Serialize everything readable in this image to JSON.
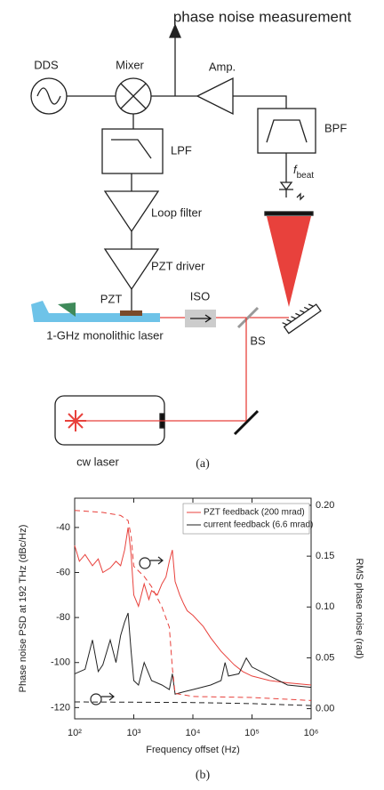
{
  "panel_a": {
    "output": "phase noise measurement",
    "dds": "DDS",
    "mixer": "Mixer",
    "amp": "Amp.",
    "bpf": "BPF",
    "lpf": "LPF",
    "f_symbol": "f",
    "f_subscript": "beat",
    "loop_filter": "Loop filter",
    "pzt_driver": "PZT driver",
    "pzt": "PZT",
    "iso": "ISO",
    "laser": "1-GHz monolithic laser",
    "bs": "BS",
    "cw_laser": "cw laser",
    "caption": "(a)"
  },
  "caption_b": "(b)",
  "chart_data": {
    "type": "line",
    "xlabel": "Frequency offset (Hz)",
    "ylabel": "Phase noise PSD at 192 THz (dBc/Hz)",
    "y2label": "RMS phase noise (rad)",
    "xscale": "log",
    "xlim": [
      100,
      1000000
    ],
    "xticks": [
      {
        "value": 100,
        "label": "10²"
      },
      {
        "value": 1000,
        "label": "10³"
      },
      {
        "value": 10000,
        "label": "10⁴"
      },
      {
        "value": 100000,
        "label": "10⁵"
      },
      {
        "value": 1000000,
        "label": "10⁶"
      }
    ],
    "ylim": [
      -125,
      -27
    ],
    "yticks": [
      -40,
      -60,
      -80,
      -100,
      -120
    ],
    "y2lim": [
      -0.01,
      0.207
    ],
    "y2ticks": [
      {
        "value": 0,
        "label": "0.00"
      },
      0.05,
      {
        "value": 0.1,
        "label": "0.10"
      },
      0.15,
      {
        "value": 0.2,
        "label": "0.20"
      }
    ],
    "legend": "upper right",
    "series": [
      {
        "name": "PZT feedback (200 mrad)",
        "color": "#e8413c",
        "x": [
          100,
          120,
          150,
          200,
          250,
          300,
          400,
          500,
          600,
          700,
          800,
          900,
          1000,
          1200,
          1500,
          1800,
          2000,
          2500,
          3000,
          3500,
          4000,
          4500,
          5000,
          6000,
          7000,
          8000,
          10000,
          15000,
          20000,
          30000,
          50000,
          70000,
          100000,
          200000,
          400000,
          1000000
        ],
        "values": [
          -48,
          -55,
          -52,
          -57,
          -54,
          -60,
          -58,
          -55,
          -57,
          -50,
          -40,
          -52,
          -70,
          -75,
          -65,
          -72,
          -68,
          -70,
          -65,
          -62,
          -55,
          -50,
          -64,
          -70,
          -74,
          -77,
          -79,
          -84,
          -89,
          -95,
          -101,
          -104,
          -106,
          -108,
          -109,
          -110
        ]
      },
      {
        "name": "current feedback (6.6 mrad)",
        "color": "#222222",
        "x": [
          100,
          150,
          200,
          250,
          300,
          400,
          500,
          600,
          700,
          800,
          900,
          1000,
          1200,
          1500,
          2000,
          3000,
          4000,
          4500,
          5000,
          7000,
          10000,
          20000,
          30000,
          35000,
          40000,
          60000,
          80000,
          100000,
          200000,
          400000,
          1000000
        ],
        "values": [
          -105,
          -103,
          -90,
          -104,
          -101,
          -90,
          -100,
          -88,
          -82,
          -78,
          -95,
          -108,
          -110,
          -100,
          -108,
          -110,
          -112,
          -105,
          -114,
          -113,
          -112,
          -110,
          -108,
          -100,
          -106,
          -105,
          -98,
          -102,
          -106,
          -110,
          -111
        ]
      },
      {
        "color": "#e8413c",
        "dashed": true,
        "axis": "y2",
        "x": [
          100,
          300,
          600,
          800,
          900,
          1000,
          1500,
          2000,
          3000,
          4000,
          4500,
          5000,
          10000,
          100000,
          1000000
        ],
        "values": [
          0.195,
          0.193,
          0.19,
          0.185,
          0.17,
          0.14,
          0.13,
          0.12,
          0.1,
          0.08,
          0.04,
          0.015,
          0.012,
          0.011,
          0.008
        ]
      },
      {
        "color": "#222222",
        "dashed": true,
        "axis": "y2",
        "x": [
          100,
          1000,
          10000,
          100000,
          1000000
        ],
        "values": [
          0.0066,
          0.0064,
          0.006,
          0.005,
          0.003
        ]
      }
    ]
  }
}
